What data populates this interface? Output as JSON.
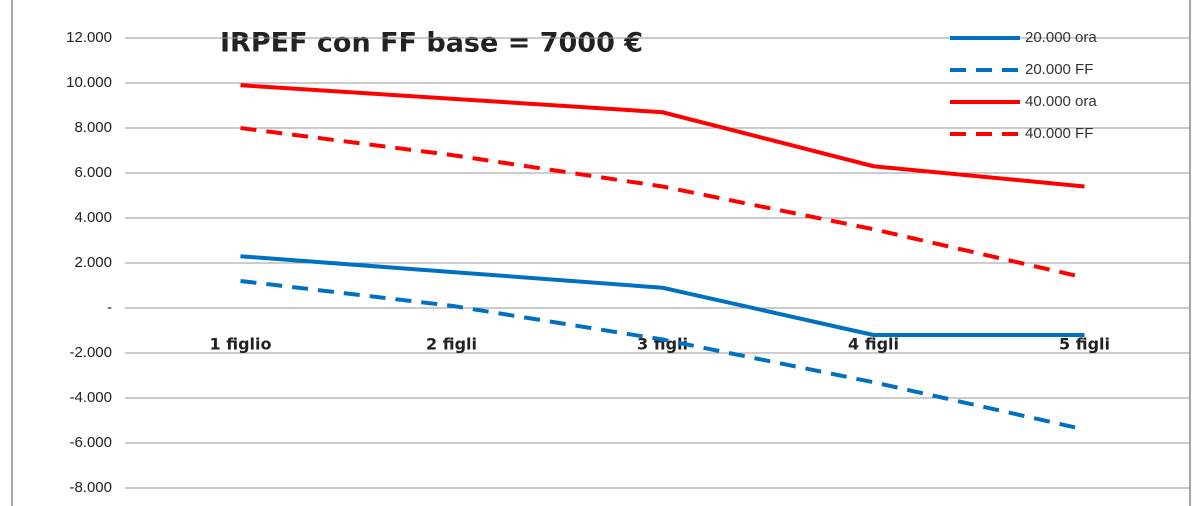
{
  "chart_data": {
    "type": "line",
    "title": "IRPEF con FF base = 7000 €",
    "categories": [
      "1 figlio",
      "2 figli",
      "3 figli",
      "4 figli",
      "5 figli"
    ],
    "series": [
      {
        "name": "20.000 ora",
        "color": "#0070c0",
        "dashed": false,
        "values": [
          2300,
          1600,
          900,
          -1200,
          -1200
        ]
      },
      {
        "name": "20.000 FF",
        "color": "#0070c0",
        "dashed": true,
        "values": [
          1200,
          100,
          -1400,
          -3300,
          -5400
        ]
      },
      {
        "name": "40.000 ora",
        "color": "#ff0000",
        "dashed": false,
        "values": [
          9900,
          9300,
          8700,
          6300,
          5400
        ]
      },
      {
        "name": "40.000 FF",
        "color": "#ff0000",
        "dashed": true,
        "values": [
          8000,
          6800,
          5400,
          3500,
          1350
        ]
      }
    ],
    "ylim": [
      -8000,
      12000
    ],
    "yticks": [
      {
        "value": -8000,
        "label": "-8.000"
      },
      {
        "value": -6000,
        "label": "-6.000"
      },
      {
        "value": -4000,
        "label": "-4.000"
      },
      {
        "value": -2000,
        "label": "-2.000"
      },
      {
        "value": 0,
        "label": "-"
      },
      {
        "value": 2000,
        "label": "2.000"
      },
      {
        "value": 4000,
        "label": "4.000"
      },
      {
        "value": 6000,
        "label": "6.000"
      },
      {
        "value": 8000,
        "label": "8.000"
      },
      {
        "value": 10000,
        "label": "10.000"
      },
      {
        "value": 12000,
        "label": "12.000"
      }
    ],
    "grid": true,
    "legend": "top-right"
  }
}
